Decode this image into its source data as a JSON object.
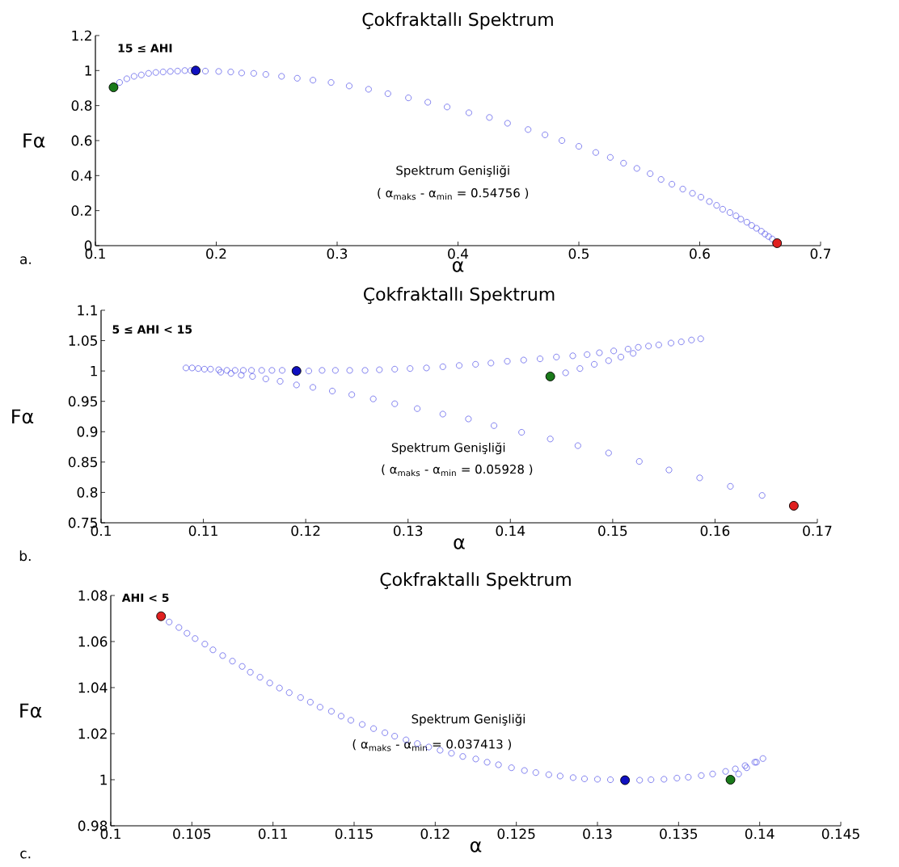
{
  "chart_data": [
    {
      "type": "scatter",
      "title": "Çokfraktallı Spektrum",
      "xlabel": "α",
      "ylabel": "Fα",
      "marker": "circle",
      "xlim": [
        0.1,
        0.7
      ],
      "ylim": [
        0,
        1.2
      ],
      "xticks": [
        0.1,
        0.2,
        0.3,
        0.4,
        0.5,
        0.6,
        0.7
      ],
      "yticks": [
        0,
        0.2,
        0.4,
        0.6,
        0.8,
        1,
        1.2
      ],
      "annotations": [
        "a.",
        "**15 ≤ AHI**",
        "Spektrum Genişliği",
        "(  α$_{maks}$   -   α$_{min}$  = 0.54756 )"
      ],
      "series": [
        {
          "color": "#4f4fe8",
          "x": [
            0.12,
            0.126,
            0.132,
            0.138,
            0.144,
            0.15,
            0.156,
            0.162,
            0.168,
            0.174,
            0.179,
            0.191,
            0.202,
            0.212,
            0.221,
            0.231,
            0.241,
            0.254,
            0.267,
            0.28,
            0.295,
            0.31,
            0.326,
            0.342,
            0.359,
            0.375,
            0.391,
            0.409,
            0.426,
            0.441,
            0.458,
            0.472,
            0.486,
            0.5,
            0.514,
            0.526,
            0.537,
            0.548,
            0.559,
            0.568,
            0.577,
            0.586,
            0.594,
            0.601,
            0.608,
            0.614,
            0.619,
            0.625,
            0.63,
            0.634,
            0.639,
            0.643,
            0.647,
            0.651,
            0.654,
            0.657,
            0.66
          ],
          "values": [
            0.932,
            0.953,
            0.967,
            0.975,
            0.984,
            0.989,
            0.992,
            0.995,
            0.997,
            1.0,
            1.0,
            0.997,
            0.995,
            0.992,
            0.986,
            0.984,
            0.978,
            0.967,
            0.956,
            0.945,
            0.932,
            0.912,
            0.893,
            0.868,
            0.844,
            0.819,
            0.792,
            0.759,
            0.732,
            0.699,
            0.663,
            0.633,
            0.6,
            0.567,
            0.532,
            0.504,
            0.471,
            0.441,
            0.411,
            0.378,
            0.351,
            0.323,
            0.299,
            0.277,
            0.252,
            0.23,
            0.208,
            0.189,
            0.17,
            0.151,
            0.134,
            0.115,
            0.099,
            0.082,
            0.066,
            0.052,
            0.038
          ]
        },
        {
          "color": "#1a7a1a",
          "x": [
            0.115
          ],
          "values": [
            0.904
          ]
        },
        {
          "color": "#1010c0",
          "x": [
            0.183
          ],
          "values": [
            1.0
          ]
        },
        {
          "color": "#e02020",
          "x": [
            0.664
          ],
          "values": [
            0.014
          ]
        }
      ]
    },
    {
      "type": "scatter",
      "title": "Çokfraktallı Spektrum",
      "xlabel": "α",
      "ylabel": "Fα",
      "marker": "circle",
      "xlim": [
        0.1,
        0.17
      ],
      "ylim": [
        0.75,
        1.1
      ],
      "xticks": [
        0.1,
        0.11,
        0.12,
        0.13,
        0.14,
        0.15,
        0.16,
        0.17
      ],
      "yticks": [
        0.75,
        0.8,
        0.85,
        0.9,
        0.95,
        1,
        1.05,
        1.1
      ],
      "annotations": [
        "b.",
        "**5 ≤ AHI < 15**",
        "Spektrum Genişliği",
        "(  α$_{maks}$    -    α$_{min}$  =  0.05928   )"
      ],
      "series": [
        {
          "color": "#4f4fe8",
          "x": [
            0.1083,
            0.1089,
            0.1095,
            0.1101,
            0.1107,
            0.1115,
            0.1123,
            0.1131,
            0.1139,
            0.1147,
            0.1157,
            0.1167,
            0.1177,
            0.1203,
            0.1216,
            0.1229,
            0.1243,
            0.1258,
            0.1272,
            0.1287,
            0.1302,
            0.1318,
            0.1334,
            0.135,
            0.1366,
            0.1381,
            0.1397,
            0.1413,
            0.1429,
            0.1445,
            0.1461,
            0.1475,
            0.1487,
            0.1501,
            0.1515,
            0.1525,
            0.1535,
            0.1545,
            0.1557,
            0.1567,
            0.1577,
            0.1586,
            0.1454,
            0.1468,
            0.1482,
            0.1496,
            0.1508,
            0.152,
            0.1117,
            0.1127,
            0.1137,
            0.1148,
            0.1161,
            0.1175,
            0.1191,
            0.1207,
            0.1226,
            0.1245,
            0.1266,
            0.1287,
            0.1309,
            0.1334,
            0.1359,
            0.1384,
            0.1411,
            0.1439,
            0.1466,
            0.1496,
            0.1526,
            0.1555,
            0.1585,
            0.1615,
            0.1646
          ],
          "values": [
            1.005,
            1.005,
            1.004,
            1.003,
            1.003,
            1.002,
            1.001,
            1.001,
            1.001,
            1.001,
            1.001,
            1.001,
            1.001,
            1.0,
            1.001,
            1.001,
            1.001,
            1.001,
            1.002,
            1.003,
            1.004,
            1.005,
            1.007,
            1.009,
            1.011,
            1.013,
            1.016,
            1.018,
            1.02,
            1.023,
            1.025,
            1.027,
            1.03,
            1.033,
            1.036,
            1.039,
            1.041,
            1.043,
            1.046,
            1.048,
            1.051,
            1.053,
            0.997,
            1.004,
            1.011,
            1.017,
            1.023,
            1.029,
            0.998,
            0.996,
            0.993,
            0.991,
            0.987,
            0.983,
            0.977,
            0.973,
            0.967,
            0.961,
            0.954,
            0.946,
            0.938,
            0.929,
            0.921,
            0.91,
            0.899,
            0.888,
            0.877,
            0.865,
            0.851,
            0.837,
            0.824,
            0.81,
            0.795
          ]
        },
        {
          "color": "#1a7a1a",
          "x": [
            0.1439
          ],
          "values": [
            0.991
          ]
        },
        {
          "color": "#1010c0",
          "x": [
            0.1191
          ],
          "values": [
            1.0
          ]
        },
        {
          "color": "#e02020",
          "x": [
            0.1677
          ],
          "values": [
            0.778
          ]
        }
      ]
    },
    {
      "type": "scatter",
      "title": "Çokfraktallı Spektrum",
      "xlabel": "α",
      "ylabel": "Fα",
      "marker": "circle",
      "xlim": [
        0.1,
        0.145
      ],
      "ylim": [
        0.98,
        1.08
      ],
      "xticks": [
        0.1,
        0.105,
        0.11,
        0.115,
        0.12,
        0.125,
        0.13,
        0.135,
        0.14,
        0.145
      ],
      "yticks": [
        0.98,
        1,
        1.02,
        1.04,
        1.06,
        1.08
      ],
      "annotations": [
        "c.",
        "**AHI < 5**",
        "Spektrum Genişliği",
        "( α$_{maks}$ - α$_{min}$ =  0.037413  )"
      ],
      "series": [
        {
          "color": "#4f4fe8",
          "x": [
            0.1036,
            0.1042,
            0.1047,
            0.1052,
            0.1058,
            0.1063,
            0.1069,
            0.1075,
            0.1081,
            0.1086,
            0.1092,
            0.1098,
            0.1104,
            0.111,
            0.1117,
            0.1123,
            0.1129,
            0.1136,
            0.1142,
            0.1148,
            0.1155,
            0.1162,
            0.1169,
            0.1175,
            0.1182,
            0.1189,
            0.1196,
            0.1203,
            0.121,
            0.1217,
            0.1225,
            0.1232,
            0.1239,
            0.1247,
            0.1255,
            0.1262,
            0.127,
            0.1277,
            0.1285,
            0.1292,
            0.13,
            0.1308,
            0.1326,
            0.1333,
            0.1341,
            0.1349,
            0.1356,
            0.1364,
            0.1371,
            0.1379,
            0.1385,
            0.1391,
            0.1397,
            0.1402,
            0.1387,
            0.1392,
            0.1398
          ],
          "values": [
            1.0685,
            1.0661,
            1.0636,
            1.0613,
            1.0589,
            1.0564,
            1.0539,
            1.0515,
            1.0492,
            1.0467,
            1.0445,
            1.042,
            1.0398,
            1.0378,
            1.0357,
            1.0337,
            1.0315,
            1.0297,
            1.0276,
            1.0258,
            1.024,
            1.0222,
            1.0204,
            1.0189,
            1.0173,
            1.0157,
            1.0142,
            1.0128,
            1.0115,
            1.0101,
            1.009,
            1.0076,
            1.0065,
            1.0052,
            1.004,
            1.0031,
            1.0022,
            1.0016,
            1.0009,
            1.0004,
            1.0002,
            1.0,
            0.9998,
            1.0,
            1.0002,
            1.0007,
            1.0011,
            1.0018,
            1.0025,
            1.0036,
            1.0047,
            1.0061,
            1.0076,
            1.0092,
            1.0025,
            1.0052,
            1.0076
          ]
        },
        {
          "color": "#1a7a1a",
          "x": [
            0.1382
          ],
          "values": [
            1.0
          ]
        },
        {
          "color": "#1010c0",
          "x": [
            0.1317
          ],
          "values": [
            0.9998
          ]
        },
        {
          "color": "#e02020",
          "x": [
            0.1031
          ],
          "values": [
            1.071
          ]
        }
      ]
    }
  ]
}
